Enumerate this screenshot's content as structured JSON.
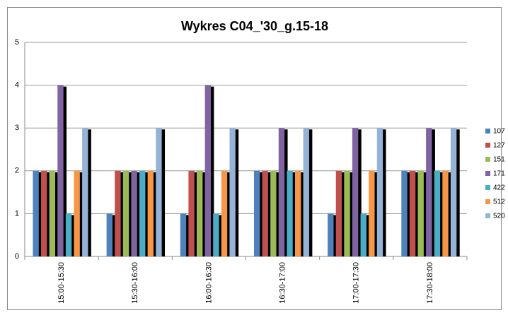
{
  "chart_data": {
    "type": "bar",
    "title": "Wykres C04_'30_g.15-18",
    "categories": [
      "15:00-15:30",
      "15:30-16:00",
      "16:00-16:30",
      "16:30-17:00",
      "17:00-17:30",
      "17:30-18:00"
    ],
    "series": [
      {
        "name": "107",
        "color": "#4f81bd",
        "values": [
          2,
          1,
          1,
          2,
          1,
          2
        ]
      },
      {
        "name": "127",
        "color": "#c0504d",
        "values": [
          2,
          2,
          2,
          2,
          2,
          2
        ]
      },
      {
        "name": "151",
        "color": "#9bbb59",
        "values": [
          2,
          2,
          2,
          2,
          2,
          2
        ]
      },
      {
        "name": "171",
        "color": "#8064a2",
        "values": [
          4,
          2,
          4,
          3,
          3,
          3
        ]
      },
      {
        "name": "422",
        "color": "#4bacc6",
        "values": [
          1,
          2,
          1,
          2,
          1,
          2
        ]
      },
      {
        "name": "512",
        "color": "#f79646",
        "values": [
          2,
          2,
          2,
          2,
          2,
          2
        ]
      },
      {
        "name": "520",
        "color": "#95b3d7",
        "values": [
          3,
          3,
          3,
          3,
          3,
          3
        ]
      }
    ],
    "ylim": [
      0,
      5
    ],
    "yticks": [
      0,
      1,
      2,
      3,
      4,
      5
    ],
    "grid": true,
    "legend": "right"
  }
}
